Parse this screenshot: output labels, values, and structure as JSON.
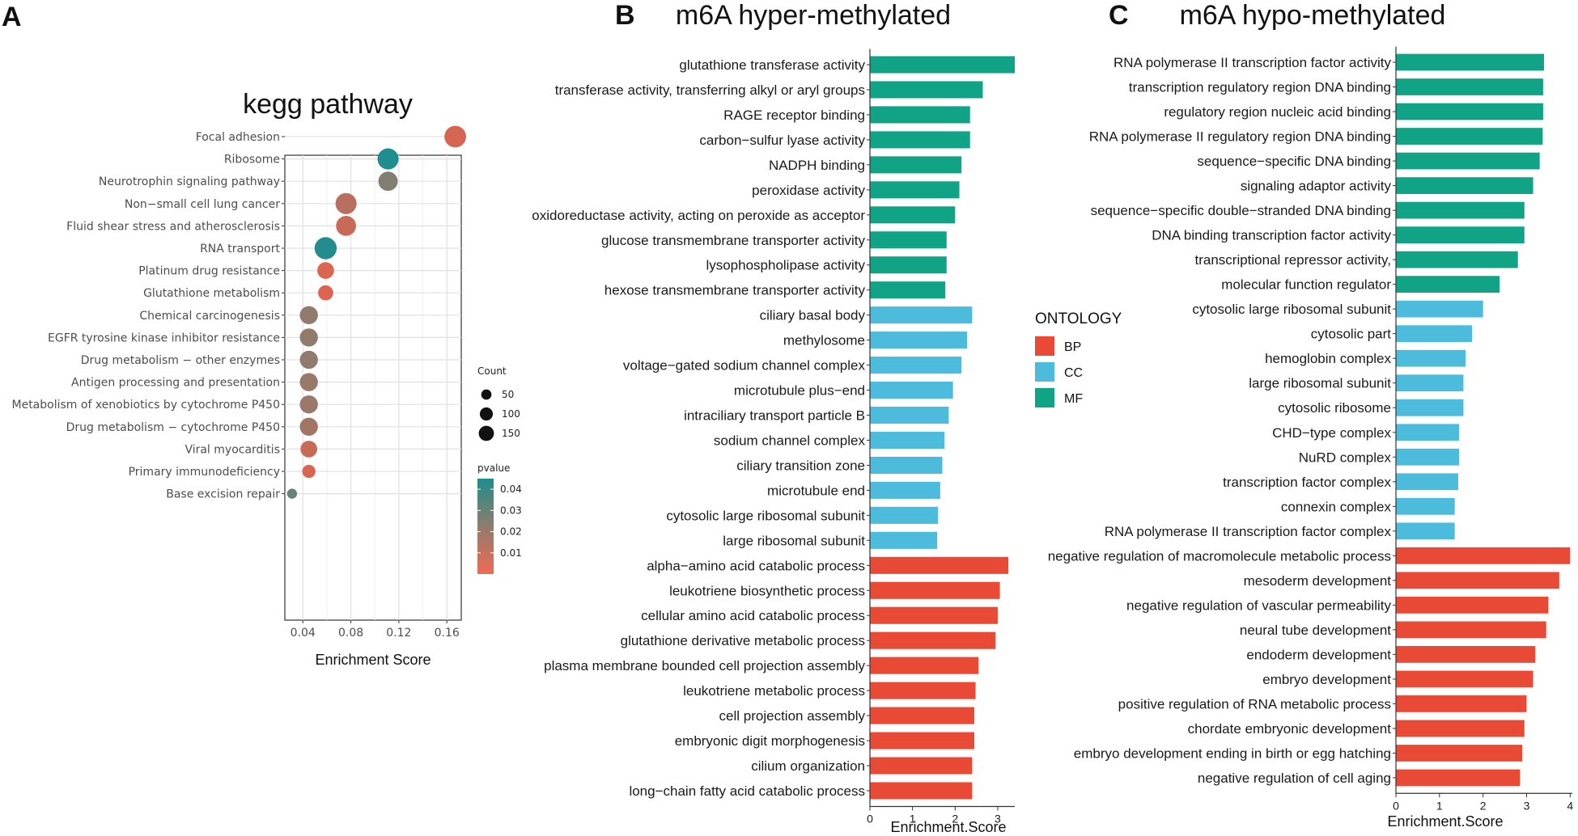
{
  "panels": {
    "a_letter": "A",
    "b_letter": "B",
    "c_letter": "C"
  },
  "colors": {
    "BP": "#e84a36",
    "CC": "#4dbbdb",
    "MF": "#11a385",
    "pvalue_high": "#1e8e8e",
    "pvalue_low": "#e8604c"
  },
  "chart_data": [
    {
      "id": "kegg",
      "type": "scatter",
      "title": "kegg pathway",
      "xlabel": "Enrichment Score",
      "ylabel": "",
      "xlim": [
        0.025,
        0.172
      ],
      "xticks": [
        0.04,
        0.08,
        0.12,
        0.16
      ],
      "xtick_labels": [
        "0.04",
        "0.08",
        "0.12",
        "0.16"
      ],
      "grid": true,
      "categories": [
        "Focal adhesion",
        "Ribosome",
        "Neurotrophin signaling pathway",
        "Non−small cell lung cancer",
        "Fluid shear stress and atherosclerosis",
        "RNA transport",
        "Platinum drug resistance",
        "Glutathione metabolism",
        "Chemical carcinogenesis",
        "EGFR tyrosine kinase inhibitor resistance",
        "Drug metabolism − other enzymes",
        "Antigen processing and presentation",
        "Metabolism of xenobiotics by cytochrome P450",
        "Drug metabolism − cytochrome P450",
        "Viral myocarditis",
        "Primary immunodeficiency",
        "Base excision repair"
      ],
      "x": [
        0.167,
        0.111,
        0.111,
        0.076,
        0.076,
        0.059,
        0.059,
        0.059,
        0.045,
        0.045,
        0.045,
        0.045,
        0.045,
        0.045,
        0.045,
        0.045,
        0.031
      ],
      "count": [
        160,
        150,
        120,
        150,
        130,
        170,
        80,
        60,
        100,
        100,
        100,
        100,
        100,
        100,
        80,
        40,
        15
      ],
      "pvalue": [
        0.005,
        0.045,
        0.025,
        0.012,
        0.008,
        0.044,
        0.003,
        0.003,
        0.022,
        0.022,
        0.022,
        0.02,
        0.02,
        0.018,
        0.008,
        0.004,
        0.03
      ],
      "size_legend": {
        "title": "Count",
        "values": [
          50,
          100,
          150
        ],
        "labels": [
          "50",
          "100",
          "150"
        ]
      },
      "color_legend": {
        "title": "pvalue",
        "range": [
          0.0,
          0.045
        ],
        "ticks": [
          0.04,
          0.03,
          0.02,
          0.01
        ],
        "labels": [
          "0.04",
          "0.03",
          "0.02",
          "0.01"
        ]
      }
    },
    {
      "id": "hyper",
      "type": "bar",
      "orientation": "horizontal",
      "title": "m6A hyper-methylated",
      "xlabel": "Enrichment.Score",
      "xlim": [
        0,
        3.4
      ],
      "xticks": [
        0,
        1,
        2,
        3
      ],
      "xtick_labels": [
        "0",
        "1",
        "2",
        "3"
      ],
      "categories": [
        "glutathione transferase activity",
        "transferase activity, transferring alkyl or aryl groups",
        "RAGE receptor binding",
        "carbon−sulfur lyase activity",
        "NADPH binding",
        "peroxidase activity",
        "oxidoreductase activity, acting on peroxide as acceptor",
        "glucose transmembrane transporter activity",
        "lysophospholipase activity",
        "hexose transmembrane transporter activity",
        "ciliary basal body",
        "methylosome",
        "voltage−gated sodium channel complex",
        "microtubule plus−end",
        "intraciliary transport particle B",
        "sodium channel complex",
        "ciliary transition zone",
        "microtubule end",
        "cytosolic large ribosomal subunit",
        "large ribosomal subunit",
        "alpha−amino acid catabolic process",
        "leukotriene biosynthetic process",
        "cellular amino acid catabolic process",
        "glutathione derivative metabolic process",
        "plasma membrane bounded cell projection assembly",
        "leukotriene metabolic process",
        "cell projection assembly",
        "embryonic digit morphogenesis",
        "cilium organization",
        "long−chain fatty acid catabolic process"
      ],
      "values": [
        3.4,
        2.65,
        2.35,
        2.35,
        2.15,
        2.1,
        2.0,
        1.8,
        1.8,
        1.77,
        2.4,
        2.28,
        2.15,
        1.95,
        1.85,
        1.75,
        1.7,
        1.65,
        1.6,
        1.58,
        3.25,
        3.05,
        3.0,
        2.95,
        2.55,
        2.48,
        2.45,
        2.45,
        2.4,
        2.4
      ],
      "ontology": [
        "MF",
        "MF",
        "MF",
        "MF",
        "MF",
        "MF",
        "MF",
        "MF",
        "MF",
        "MF",
        "CC",
        "CC",
        "CC",
        "CC",
        "CC",
        "CC",
        "CC",
        "CC",
        "CC",
        "CC",
        "BP",
        "BP",
        "BP",
        "BP",
        "BP",
        "BP",
        "BP",
        "BP",
        "BP",
        "BP"
      ]
    },
    {
      "id": "hypo",
      "type": "bar",
      "orientation": "horizontal",
      "title": "m6A hypo-methylated",
      "xlabel": "Enrichment.Score",
      "xlim": [
        0,
        4.05
      ],
      "xticks": [
        0,
        1,
        2,
        3,
        4
      ],
      "xtick_labels": [
        "0",
        "1",
        "2",
        "3",
        "4"
      ],
      "categories": [
        "RNA polymerase II transcription factor activity",
        "transcription regulatory region DNA binding",
        "regulatory region nucleic acid binding",
        "RNA polymerase II regulatory region DNA binding",
        "sequence−specific DNA binding",
        "signaling adaptor activity",
        "sequence−specific double−stranded DNA binding",
        "DNA binding transcription factor activity",
        "transcriptional repressor activity,",
        "molecular function regulator",
        "cytosolic large ribosomal subunit",
        "cytosolic part",
        "hemoglobin complex",
        "large ribosomal subunit",
        "cytosolic ribosome",
        "CHD−type complex",
        "NuRD complex",
        "transcription factor complex",
        "connexin complex",
        "RNA polymerase II transcription factor complex",
        "negative regulation of macromolecule metabolic process",
        "mesoderm development",
        "negative regulation of vascular permeability",
        "neural tube development",
        "endoderm development",
        "embryo development",
        "positive regulation of RNA metabolic process",
        "chordate embryonic development",
        "embryo development ending in birth or egg hatching",
        "negative regulation of cell aging"
      ],
      "values": [
        3.4,
        3.38,
        3.38,
        3.37,
        3.3,
        3.15,
        2.95,
        2.95,
        2.8,
        2.38,
        2.0,
        1.75,
        1.6,
        1.55,
        1.55,
        1.45,
        1.45,
        1.43,
        1.35,
        1.35,
        4.0,
        3.75,
        3.5,
        3.45,
        3.2,
        3.15,
        3.0,
        2.95,
        2.9,
        2.85
      ],
      "ontology": [
        "MF",
        "MF",
        "MF",
        "MF",
        "MF",
        "MF",
        "MF",
        "MF",
        "MF",
        "MF",
        "CC",
        "CC",
        "CC",
        "CC",
        "CC",
        "CC",
        "CC",
        "CC",
        "CC",
        "CC",
        "BP",
        "BP",
        "BP",
        "BP",
        "BP",
        "BP",
        "BP",
        "BP",
        "BP",
        "BP"
      ]
    }
  ],
  "legend": {
    "title": "ONTOLOGY",
    "items": [
      "BP",
      "CC",
      "MF"
    ]
  }
}
